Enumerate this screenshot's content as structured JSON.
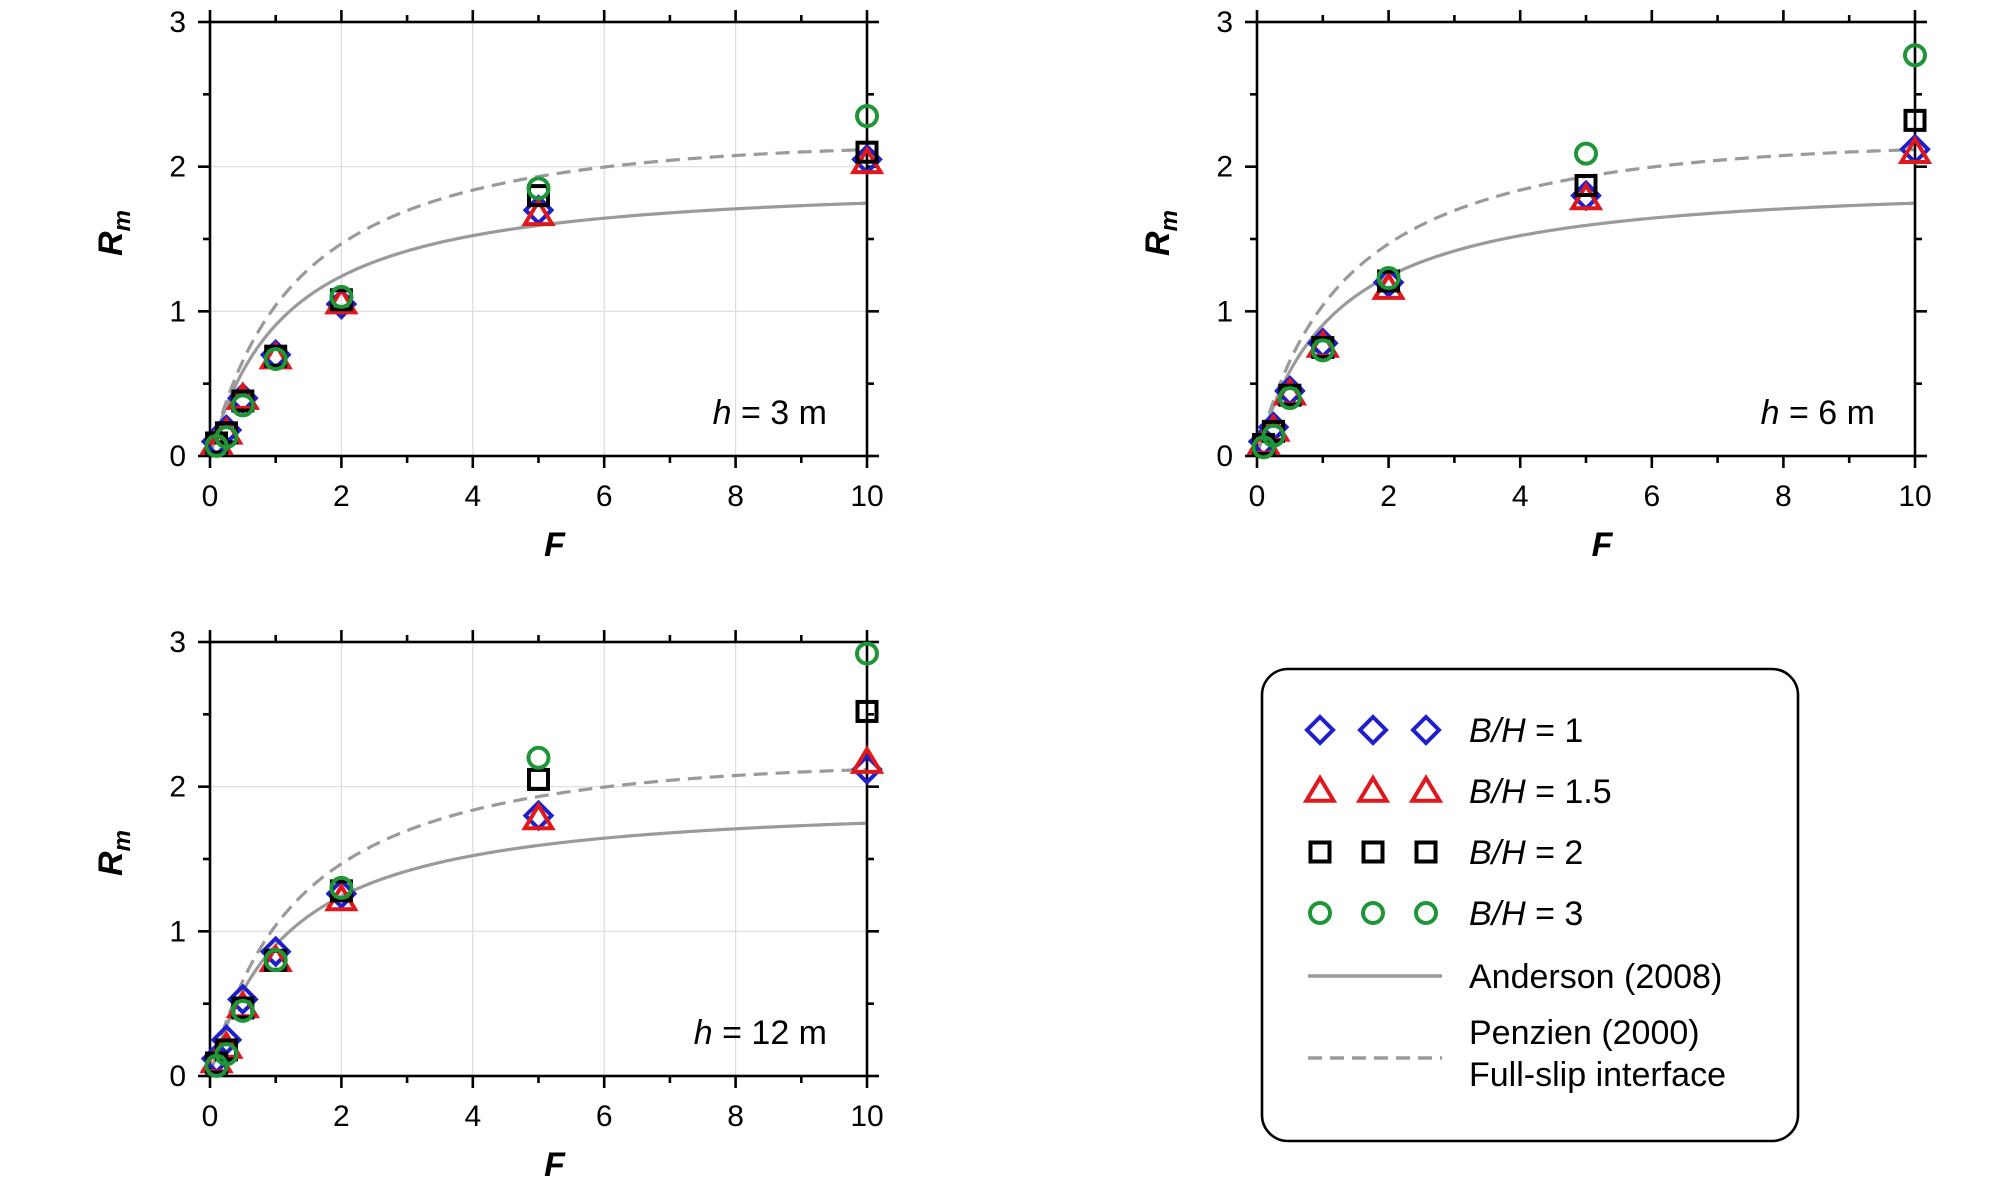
{
  "legend": {
    "items": [
      {
        "name": "B/H",
        "value": "= 1",
        "marker": "diamond",
        "color": "#1f1fcc"
      },
      {
        "name": "B/H",
        "value": "= 1.5",
        "marker": "triangle",
        "color": "#e0181c"
      },
      {
        "name": "B/H",
        "value": "= 2",
        "marker": "square",
        "color": "#000000"
      },
      {
        "name": "B/H",
        "value": "= 3",
        "marker": "circle",
        "color": "#1e9638"
      }
    ],
    "lines": [
      {
        "label": "Anderson (2008)",
        "style": "solid",
        "color": "#9a9a9a"
      },
      {
        "label": "Penzien (2000)",
        "label2": "Full-slip interface",
        "style": "dashed",
        "color": "#9a9a9a"
      }
    ]
  },
  "chart_data": [
    {
      "type": "scatter",
      "annotation": {
        "var": "h",
        "text": " = 3 m"
      },
      "xlabel": "F",
      "ylabel": "R",
      "ylabel_sub": "m",
      "xlim": [
        0,
        10
      ],
      "ylim": [
        0,
        3
      ],
      "xticks": [
        "0",
        "2",
        "4",
        "6",
        "8",
        "10"
      ],
      "yticks": [
        "0",
        "1",
        "2",
        "3"
      ],
      "grid": true,
      "x": [
        0.1,
        0.25,
        0.5,
        1,
        2,
        5,
        10
      ],
      "series": [
        {
          "name": "B/H = 1",
          "marker": "diamond",
          "color": "#1f1fcc",
          "values": [
            0.1,
            0.18,
            0.4,
            0.7,
            1.05,
            1.7,
            2.05
          ]
        },
        {
          "name": "B/H = 1.5",
          "marker": "triangle",
          "color": "#e0181c",
          "values": [
            0.09,
            0.16,
            0.4,
            0.68,
            1.06,
            1.67,
            2.03
          ]
        },
        {
          "name": "B/H = 2",
          "marker": "square",
          "color": "#000000",
          "values": [
            0.09,
            0.16,
            0.38,
            0.69,
            1.08,
            1.8,
            2.1
          ]
        },
        {
          "name": "B/H = 3",
          "marker": "circle",
          "color": "#1e9638",
          "values": [
            0.07,
            0.13,
            0.35,
            0.67,
            1.1,
            1.85,
            2.35
          ]
        }
      ],
      "curves": [
        {
          "name": "Anderson (2008)",
          "style": "solid",
          "a": 1.2,
          "b": 0.0038
        },
        {
          "name": "Penzien (2000)",
          "style": "dashed",
          "a": 1.4,
          "b": 0.003
        }
      ]
    },
    {
      "type": "scatter",
      "annotation": {
        "var": "h",
        "text": " = 6 m"
      },
      "xlabel": "F",
      "ylabel": "R",
      "ylabel_sub": "m",
      "xlim": [
        0,
        10
      ],
      "ylim": [
        0,
        3
      ],
      "xticks": [
        "0",
        "2",
        "4",
        "6",
        "8",
        "10"
      ],
      "yticks": [
        "0",
        "1",
        "2",
        "3"
      ],
      "grid": false,
      "x": [
        0.1,
        0.25,
        0.5,
        1,
        2,
        5,
        10
      ],
      "series": [
        {
          "name": "B/H = 1",
          "marker": "diamond",
          "color": "#1f1fcc",
          "values": [
            0.1,
            0.2,
            0.45,
            0.78,
            1.2,
            1.8,
            2.12
          ]
        },
        {
          "name": "B/H = 1.5",
          "marker": "triangle",
          "color": "#e0181c",
          "values": [
            0.09,
            0.18,
            0.43,
            0.76,
            1.16,
            1.78,
            2.1
          ]
        },
        {
          "name": "B/H = 2",
          "marker": "square",
          "color": "#000000",
          "values": [
            0.08,
            0.17,
            0.42,
            0.75,
            1.21,
            1.87,
            2.32
          ]
        },
        {
          "name": "B/H = 3",
          "marker": "circle",
          "color": "#1e9638",
          "values": [
            0.06,
            0.14,
            0.4,
            0.73,
            1.23,
            2.09,
            2.77
          ]
        }
      ],
      "curves": [
        {
          "name": "Anderson (2008)",
          "style": "solid",
          "a": 1.2,
          "b": 0.0038
        },
        {
          "name": "Penzien (2000)",
          "style": "dashed",
          "a": 1.4,
          "b": 0.003
        }
      ]
    },
    {
      "type": "scatter",
      "annotation": {
        "var": "h",
        "text": " = 12 m"
      },
      "xlabel": "F",
      "ylabel": "R",
      "ylabel_sub": "m",
      "xlim": [
        0,
        10
      ],
      "ylim": [
        0,
        3
      ],
      "xticks": [
        "0",
        "2",
        "4",
        "6",
        "8",
        "10"
      ],
      "yticks": [
        "0",
        "1",
        "2",
        "3"
      ],
      "grid": true,
      "x": [
        0.1,
        0.25,
        0.5,
        1,
        2,
        5,
        10
      ],
      "series": [
        {
          "name": "B/H = 1",
          "marker": "diamond",
          "color": "#1f1fcc",
          "values": [
            0.12,
            0.25,
            0.53,
            0.86,
            1.26,
            1.8,
            2.12
          ]
        },
        {
          "name": "B/H = 1.5",
          "marker": "triangle",
          "color": "#e0181c",
          "values": [
            0.1,
            0.2,
            0.48,
            0.8,
            1.22,
            1.78,
            2.17
          ]
        },
        {
          "name": "B/H = 2",
          "marker": "square",
          "color": "#000000",
          "values": [
            0.09,
            0.18,
            0.47,
            0.8,
            1.28,
            2.05,
            2.52
          ]
        },
        {
          "name": "B/H = 3",
          "marker": "circle",
          "color": "#1e9638",
          "values": [
            0.07,
            0.15,
            0.45,
            0.8,
            1.3,
            2.2,
            2.92
          ]
        }
      ],
      "curves": [
        {
          "name": "Anderson (2008)",
          "style": "solid",
          "a": 1.2,
          "b": 0.0038
        },
        {
          "name": "Penzien (2000)",
          "style": "dashed",
          "a": 1.4,
          "b": 0.003
        }
      ]
    }
  ]
}
